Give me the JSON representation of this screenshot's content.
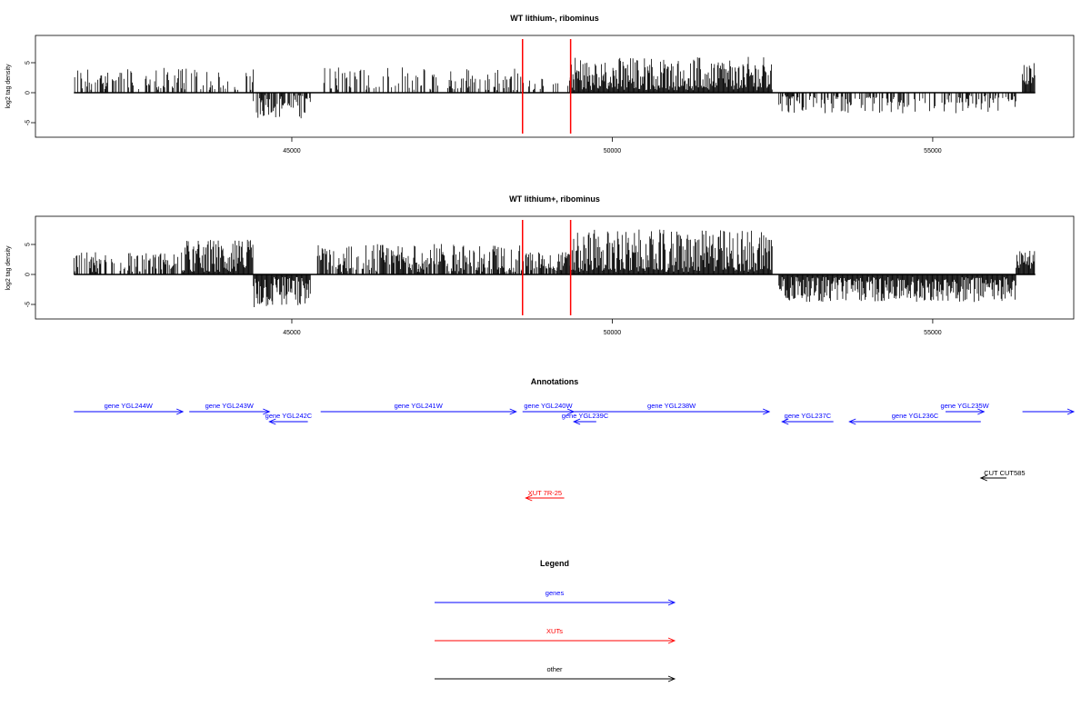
{
  "chart_data": [
    {
      "type": "bar",
      "title": "WT lithium-, ribominus",
      "ylabel": "log2 tag density",
      "xlim": [
        41000,
        57200
      ],
      "ylim": [
        -7,
        9
      ],
      "x_ticks": [
        45000,
        50000,
        55000
      ],
      "x_tick_labels": [
        "45000",
        "50000",
        "55000"
      ],
      "y_ticks": [
        -5,
        0,
        5
      ],
      "y_tick_labels": [
        "-5",
        "0",
        "5"
      ],
      "markers": [
        48600,
        49350
      ],
      "marker_color": "#ff0000",
      "grid": false,
      "segments": [
        {
          "start": 41600,
          "end": 44400,
          "mean": 2.0,
          "amp": 2.2,
          "sign": 1,
          "density": 0.45
        },
        {
          "start": 44400,
          "end": 45300,
          "mean": -2.0,
          "amp": 2.3,
          "sign": -1,
          "density": 0.7
        },
        {
          "start": 45500,
          "end": 48600,
          "mean": 1.9,
          "amp": 2.4,
          "sign": 1,
          "density": 0.4
        },
        {
          "start": 48600,
          "end": 49350,
          "mean": 1.4,
          "amp": 1.2,
          "sign": 1,
          "density": 0.25
        },
        {
          "start": 49350,
          "end": 52500,
          "mean": 2.5,
          "amp": 3.5,
          "sign": 1,
          "density": 1.0
        },
        {
          "start": 52600,
          "end": 56300,
          "mean": -1.6,
          "amp": 1.9,
          "sign": -1,
          "density": 0.45
        },
        {
          "start": 56400,
          "end": 56600,
          "mean": 3.0,
          "amp": 2.0,
          "sign": 1,
          "density": 1.0
        }
      ]
    },
    {
      "type": "bar",
      "title": "WT lithium+, ribominus",
      "ylabel": "log2 tag density",
      "xlim": [
        41000,
        57200
      ],
      "ylim": [
        -7,
        9
      ],
      "x_ticks": [
        45000,
        50000,
        55000
      ],
      "x_tick_labels": [
        "45000",
        "50000",
        "55000"
      ],
      "y_ticks": [
        -5,
        0,
        5
      ],
      "y_tick_labels": [
        "-5",
        "0",
        "5"
      ],
      "markers": [
        48600,
        49350
      ],
      "marker_color": "#ff0000",
      "grid": false,
      "segments": [
        {
          "start": 41600,
          "end": 43300,
          "mean": 1.9,
          "amp": 1.8,
          "sign": 1,
          "density": 0.55
        },
        {
          "start": 43300,
          "end": 44400,
          "mean": 2.8,
          "amp": 3.0,
          "sign": 1,
          "density": 1.0
        },
        {
          "start": 44400,
          "end": 45300,
          "mean": -2.6,
          "amp": 3.0,
          "sign": -1,
          "density": 1.0
        },
        {
          "start": 45400,
          "end": 48600,
          "mean": 2.3,
          "amp": 2.8,
          "sign": 1,
          "density": 0.75
        },
        {
          "start": 48600,
          "end": 49350,
          "mean": 2.2,
          "amp": 1.6,
          "sign": 1,
          "density": 0.8
        },
        {
          "start": 49350,
          "end": 52500,
          "mean": 3.0,
          "amp": 4.5,
          "sign": 1,
          "density": 1.0
        },
        {
          "start": 52600,
          "end": 56300,
          "mean": -2.0,
          "amp": 2.6,
          "sign": -1,
          "density": 1.0
        },
        {
          "start": 56300,
          "end": 56600,
          "mean": 2.4,
          "amp": 1.6,
          "sign": 1,
          "density": 1.0
        }
      ]
    }
  ],
  "annotations": {
    "title": "Annotations",
    "genes": [
      {
        "label": "gene YGL244W",
        "start": 41600,
        "end": 43300,
        "strand": "+",
        "row": 1
      },
      {
        "label": "gene YGL243W",
        "start": 43400,
        "end": 44650,
        "strand": "+",
        "row": 1
      },
      {
        "label": "gene YGL242C",
        "start": 44650,
        "end": 45250,
        "strand": "-",
        "row": 2
      },
      {
        "label": "gene YGL241W",
        "start": 45450,
        "end": 48500,
        "strand": "+",
        "row": 1
      },
      {
        "label": "gene YGL240W",
        "start": 48600,
        "end": 49400,
        "strand": "+",
        "row": 1
      },
      {
        "label": "gene YGL239C",
        "start": 49400,
        "end": 49750,
        "strand": "-",
        "row": 2
      },
      {
        "label": "gene YGL238W",
        "start": 49400,
        "end": 52450,
        "strand": "+",
        "row": 1
      },
      {
        "label": "gene YGL237C",
        "start": 52650,
        "end": 53450,
        "strand": "-",
        "row": 2
      },
      {
        "label": "gene YGL236C",
        "start": 53700,
        "end": 55750,
        "strand": "-",
        "row": 2
      },
      {
        "label": "gene YGL235W",
        "start": 55200,
        "end": 55800,
        "strand": "+",
        "row": 1
      },
      {
        "label": "",
        "start": 56400,
        "end": 57200,
        "strand": "+",
        "row": 1
      }
    ],
    "xuts": [
      {
        "label": "XUT 7R-25",
        "start": 48650,
        "end": 49250,
        "strand": "-"
      }
    ],
    "others": [
      {
        "label": "CUT CUT585",
        "start": 55750,
        "end": 56150,
        "strand": "-"
      }
    ]
  },
  "legend": {
    "title": "Legend",
    "items": [
      {
        "label": "genes",
        "color": "#0000ff"
      },
      {
        "label": "XUTs",
        "color": "#ff0000"
      },
      {
        "label": "other",
        "color": "#000000"
      }
    ]
  },
  "colors": {
    "gene": "#0000ff",
    "xut": "#ff0000",
    "other": "#000000",
    "marker": "#ff0000"
  }
}
